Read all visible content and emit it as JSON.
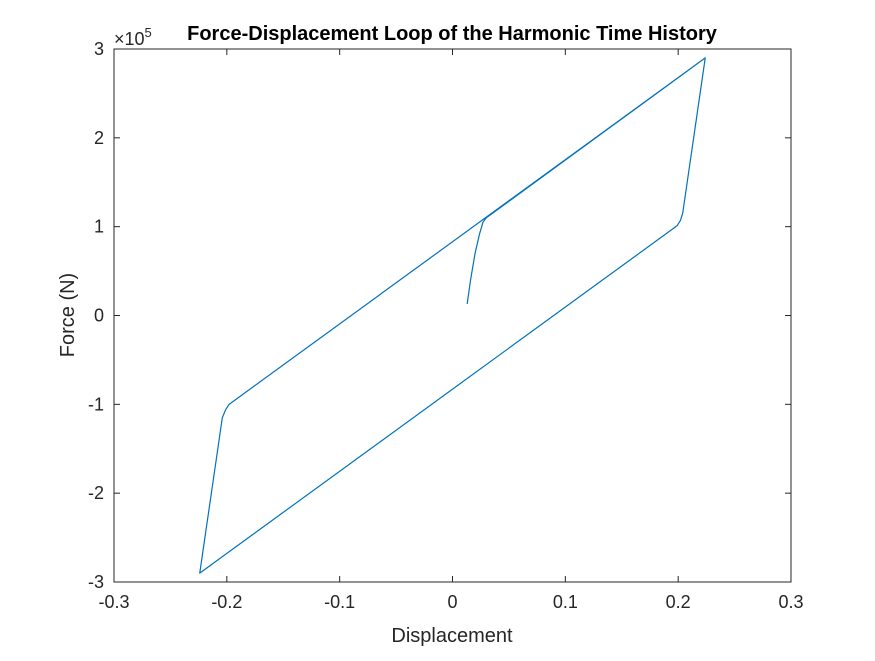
{
  "chart_data": {
    "type": "line",
    "title": "Force-Displacement Loop of the Harmonic Time History",
    "xlabel": "Displacement",
    "ylabel": "Force (N)",
    "y_exponent_label": "×10",
    "y_exponent_power": "5",
    "xlim": [
      -0.3,
      0.3
    ],
    "ylim": [
      -3,
      3
    ],
    "x_ticks": [
      -0.3,
      -0.2,
      -0.1,
      0,
      0.1,
      0.2,
      0.3
    ],
    "x_tick_labels": [
      "-0.3",
      "-0.2",
      "-0.1",
      "0",
      "0.1",
      "0.2",
      "0.3"
    ],
    "y_ticks": [
      -3,
      -2,
      -1,
      0,
      1,
      2,
      3
    ],
    "y_tick_labels": [
      "-3",
      "-2",
      "-1",
      "0",
      "1",
      "2",
      "3"
    ],
    "grid": false,
    "legend": "none",
    "series": [
      {
        "color": "#0072BD",
        "x": [
          0.013,
          0.016,
          0.02,
          0.024,
          0.027,
          0.03,
          0.224,
          0.204,
          0.202,
          0.199,
          -0.224,
          -0.204,
          -0.201,
          -0.198,
          0.224
        ],
        "y": [
          0.13,
          0.4,
          0.7,
          0.92,
          1.05,
          1.1,
          2.9,
          1.15,
          1.07,
          1.01,
          -2.9,
          -1.15,
          -1.06,
          -1.0,
          2.9
        ]
      }
    ]
  }
}
